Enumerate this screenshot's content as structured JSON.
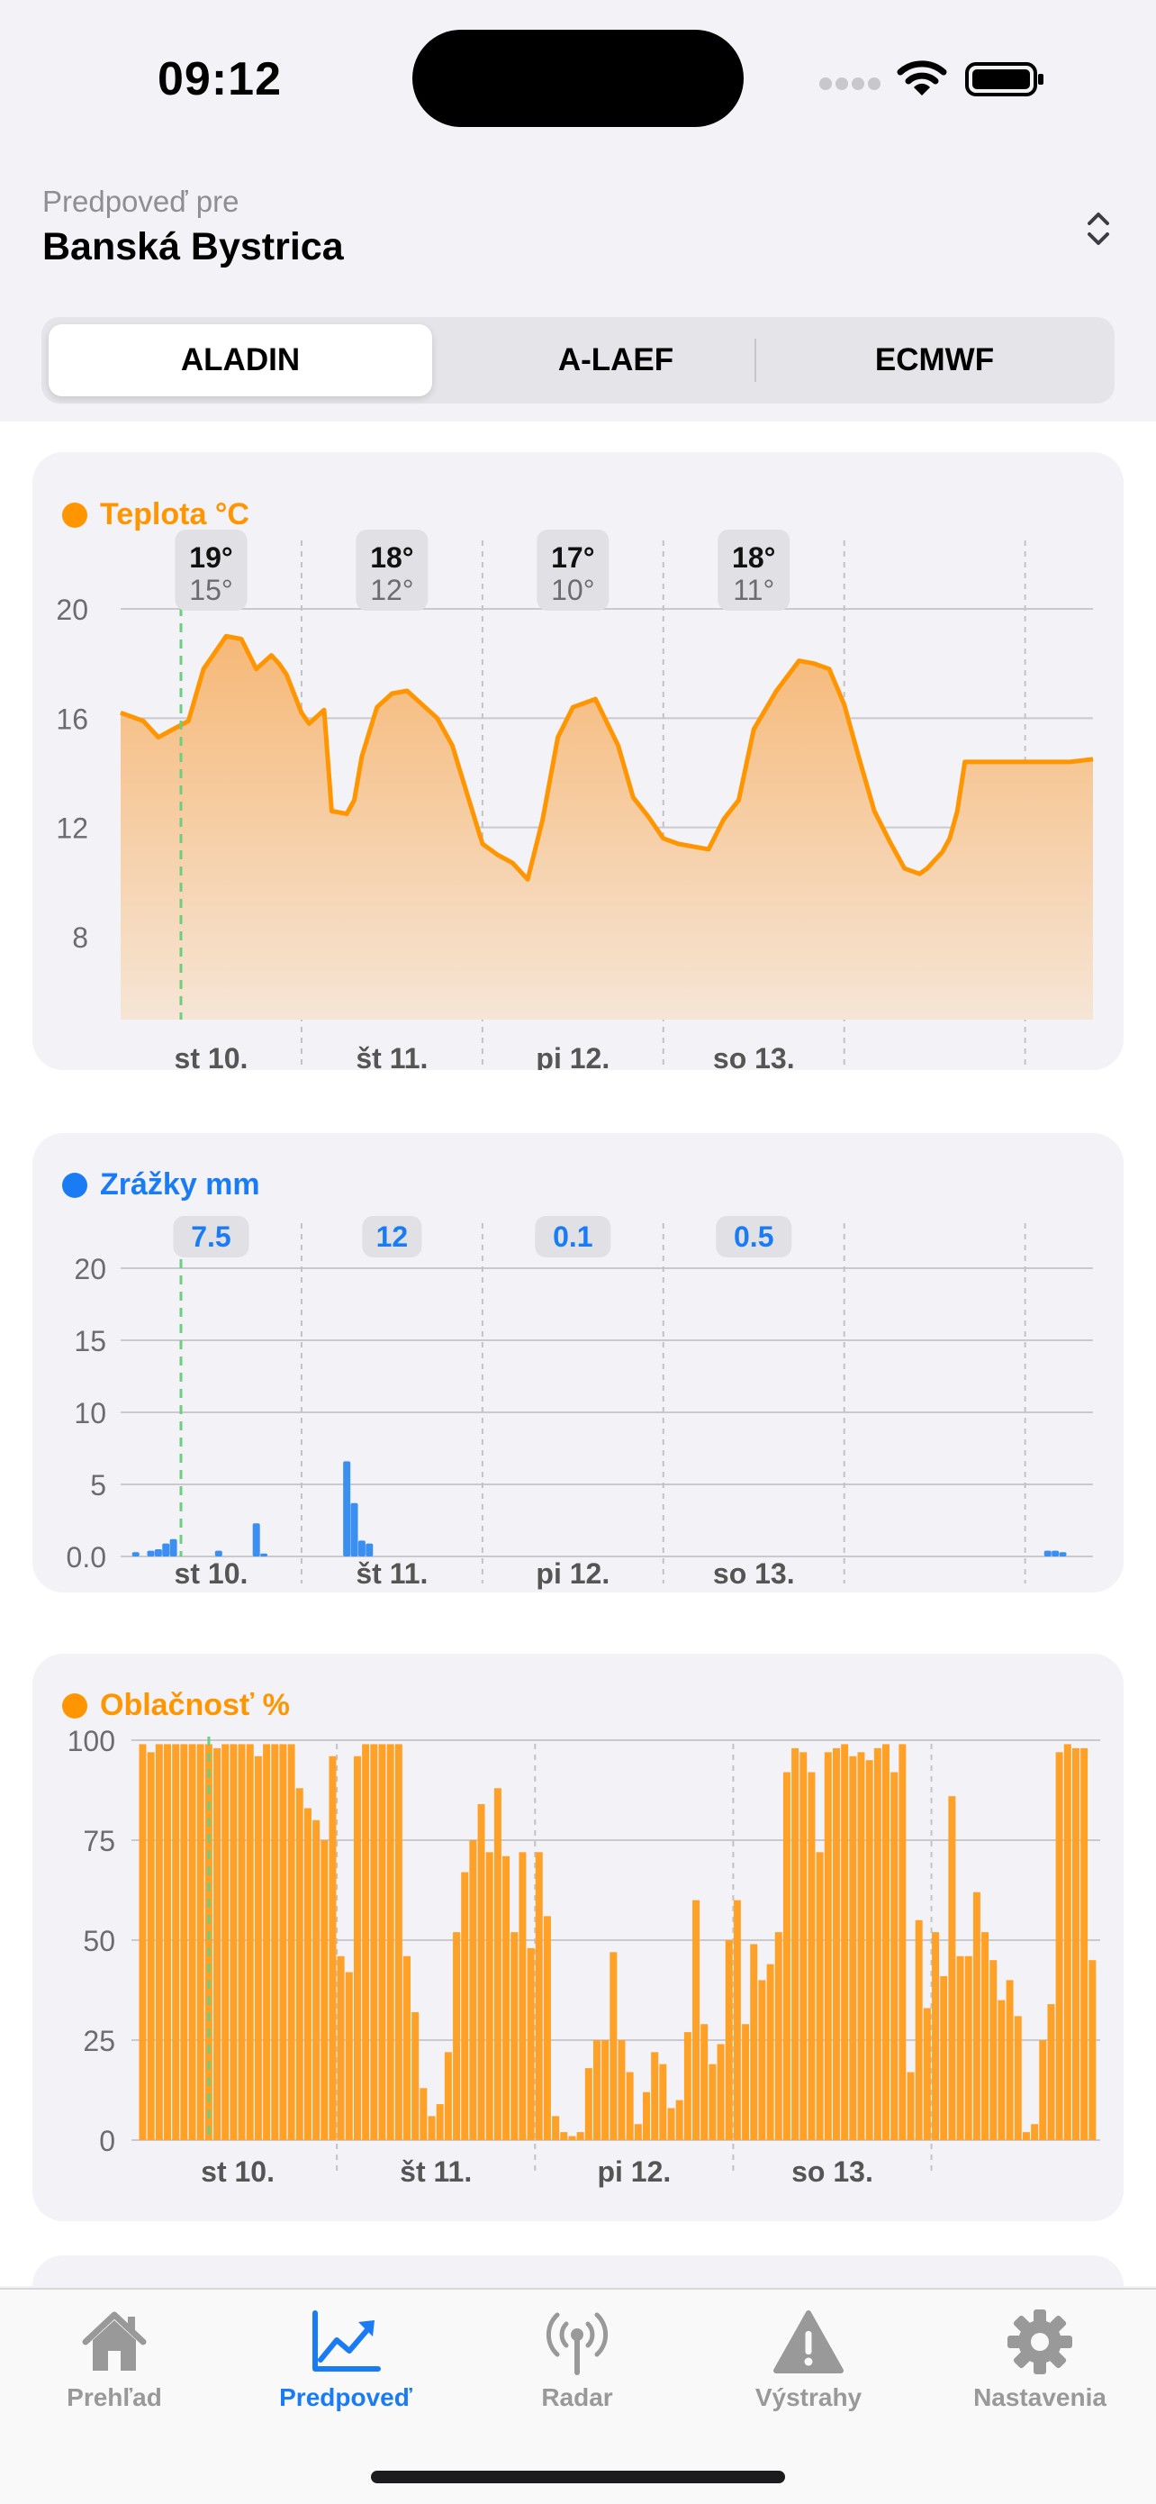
{
  "status_bar": {
    "time": "09:12"
  },
  "header": {
    "forecast_label": "Predpoveď pre",
    "location": "Banská Bystrica"
  },
  "model_selector": {
    "options": [
      "ALADIN",
      "A-LAEF",
      "ECMWF"
    ],
    "selected": "ALADIN"
  },
  "colors": {
    "temperature": "#ff9500",
    "precipitation": "#1a7cf4",
    "cloud_cover": "#ffa127",
    "now_marker": "#6ccf7f",
    "active_tab": "#1a7cf4"
  },
  "chart_data": [
    {
      "type": "area",
      "title": "Teplota °C",
      "days": [
        "st 10.",
        "št 11.",
        "pi 12.",
        "so 13."
      ],
      "daily_max": [
        "19°",
        "18°",
        "17°",
        "18°"
      ],
      "daily_min": [
        "15°",
        "12°",
        "10°",
        "11°"
      ],
      "yticks": [
        20,
        16,
        12,
        8
      ],
      "ylim": [
        6,
        20
      ],
      "x_unit": "hours from start",
      "x": [
        0,
        3,
        5,
        7,
        9,
        11,
        14,
        16,
        18,
        20,
        21,
        22,
        24,
        25,
        27,
        28,
        30,
        31,
        32,
        34,
        36,
        38,
        40,
        42,
        44,
        46,
        48,
        50,
        52,
        54,
        56,
        58,
        60,
        63,
        66,
        68,
        70,
        72,
        74,
        76,
        78,
        80,
        82,
        84,
        87,
        90,
        92,
        94,
        96,
        98,
        100,
        102,
        103,
        104,
        106,
        107,
        108,
        109,
        110,
        111,
        112,
        114,
        116,
        118,
        120,
        122,
        124,
        126,
        129
      ],
      "series": [
        {
          "values": [
            16.2,
            15.9,
            15.3,
            15.6,
            15.9,
            17.8,
            19.0,
            18.9,
            17.8,
            18.3,
            18.0,
            17.6,
            16.2,
            15.8,
            16.3,
            12.6,
            12.5,
            13.0,
            14.6,
            16.4,
            16.9,
            17.0,
            16.5,
            16.0,
            15.0,
            13.2,
            11.4,
            11.0,
            10.7,
            10.1,
            12.3,
            15.3,
            16.4,
            16.7,
            15.0,
            13.1,
            12.4,
            11.6,
            11.4,
            11.3,
            11.2,
            12.3,
            13.0,
            15.6,
            17.0,
            18.1,
            18.0,
            17.8,
            16.5,
            14.5,
            12.6,
            11.5,
            11.0,
            10.5,
            10.3,
            10.5,
            10.8,
            11.1,
            11.6,
            12.6,
            14.4,
            14.4,
            14.4,
            14.4,
            14.4,
            14.4,
            14.4,
            14.4,
            14.5
          ]
        }
      ]
    },
    {
      "type": "bar",
      "title": "Zrážky mm",
      "days": [
        "st 10.",
        "št 11.",
        "pi 12.",
        "so 13."
      ],
      "daily_totals": [
        "7.5",
        "12",
        "0.1",
        "0.5"
      ],
      "yticks": [
        "20",
        "15",
        "10",
        "5",
        "0.0"
      ],
      "ylim": [
        0,
        20
      ],
      "x_unit": "hours from start",
      "x": [
        2,
        4,
        5,
        6,
        7,
        13,
        18,
        19,
        30,
        31,
        32,
        33,
        123,
        124,
        125
      ],
      "series": [
        {
          "values": [
            0.3,
            0.4,
            0.5,
            0.9,
            1.2,
            0.4,
            2.3,
            0.2,
            6.6,
            3.7,
            1.1,
            0.9,
            0.4,
            0.4,
            0.3
          ]
        }
      ]
    },
    {
      "type": "bar",
      "title": "Oblačnosť %",
      "days": [
        "st 10.",
        "št 11.",
        "pi 12.",
        "so 13."
      ],
      "yticks": [
        100,
        75,
        50,
        25,
        0
      ],
      "ylim": [
        0,
        100
      ],
      "categories_unit": "hour index",
      "series": [
        {
          "values": [
            99,
            97,
            99,
            99,
            99,
            99,
            99,
            99,
            99,
            98,
            99,
            99,
            99,
            99,
            96,
            99,
            99,
            99,
            99,
            88,
            83,
            80,
            75,
            96,
            46,
            42,
            96,
            99,
            99,
            99,
            99,
            99,
            46,
            32,
            13,
            6,
            9,
            22,
            52,
            67,
            75,
            84,
            72,
            88,
            71,
            52,
            72,
            48,
            72,
            56,
            6,
            2,
            1,
            2,
            18,
            25,
            25,
            47,
            25,
            17,
            4,
            12,
            22,
            19,
            8,
            10,
            27,
            60,
            29,
            19,
            24,
            50,
            60,
            29,
            49,
            40,
            44,
            52,
            92,
            98,
            97,
            92,
            72,
            97,
            98,
            99,
            96,
            97,
            95,
            98,
            99,
            92,
            99,
            17,
            55,
            33,
            52,
            41,
            86,
            46,
            46,
            62,
            52,
            45,
            35,
            40,
            31,
            2,
            4,
            25,
            34,
            97,
            99,
            98,
            98,
            45
          ]
        }
      ]
    }
  ],
  "tabs": [
    {
      "label": "Prehľad",
      "icon": "house-icon"
    },
    {
      "label": "Predpoveď",
      "icon": "chart-trend-icon",
      "active": true
    },
    {
      "label": "Radar",
      "icon": "antenna-icon"
    },
    {
      "label": "Výstrahy",
      "icon": "warning-triangle-icon"
    },
    {
      "label": "Nastavenia",
      "icon": "gear-icon"
    }
  ]
}
